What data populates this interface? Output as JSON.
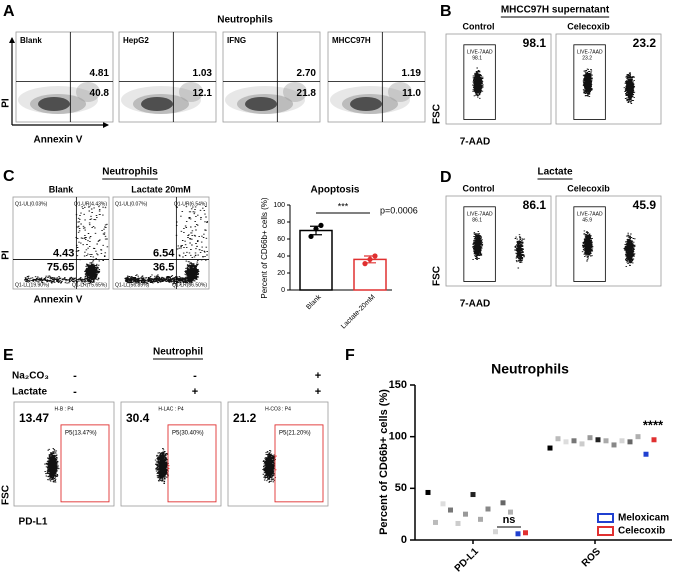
{
  "panel_a": {
    "letter": "A",
    "title": "Neutrophils",
    "y_axis": "PI",
    "x_axis": "Annexin V",
    "plots": [
      {
        "name": "Blank",
        "upper_right": "4.81",
        "lower_right": "40.8"
      },
      {
        "name": "HepG2",
        "upper_right": "1.03",
        "lower_right": "12.1"
      },
      {
        "name": "IFNG",
        "upper_right": "2.70",
        "lower_right": "21.8"
      },
      {
        "name": "MHCC97H",
        "upper_right": "1.19",
        "lower_right": "11.0"
      }
    ]
  },
  "panel_b": {
    "letter": "B",
    "title": "MHCC97H supernatant",
    "y_axis": "FSC",
    "x_axis": "7-AAD",
    "plots": [
      {
        "name": "Control",
        "value": "98.1",
        "gate": "LIVE-7AAD",
        "gate_value": "98.1"
      },
      {
        "name": "Celecoxib",
        "value": "23.2",
        "gate": "LIVE-7AAD",
        "gate_value": "23.2"
      }
    ]
  },
  "panel_c": {
    "letter": "C",
    "title": "Neutrophils",
    "y_axis": "PI",
    "x_axis": "Annexin V",
    "plots": [
      {
        "name": "Blank",
        "upper_right": "4.43",
        "lower_right": "75.65",
        "quadrants": [
          "Q1-UL(0.03%)",
          "Q1-UR(4.43%)",
          "Q1-LL(19.90%)",
          "Q1-LR(75.65%)"
        ]
      },
      {
        "name": "Lactate 20mM",
        "upper_right": "6.54",
        "lower_right": "36.5",
        "quadrants": [
          "Q1-UL(0.07%)",
          "Q1-UR(6.54%)",
          "Q1-LL(56.89%)",
          "Q1-LR(36.50%)"
        ]
      }
    ]
  },
  "panel_d": {
    "letter": "D",
    "title": "Lactate",
    "y_axis": "FSC",
    "x_axis": "7-AAD",
    "plots": [
      {
        "name": "Control",
        "value": "86.1",
        "gate": "LIVE-7AAD",
        "gate_value": "86.1"
      },
      {
        "name": "Celecoxib",
        "value": "45.9",
        "gate": "LIVE-7AAD",
        "gate_value": "45.9"
      }
    ]
  },
  "panel_e": {
    "letter": "E",
    "title": "Neutrophil",
    "y_axis": "FSC",
    "x_axis": "PD-L1",
    "rows": [
      {
        "label": "Na₂CO₃",
        "signs": [
          "-",
          "-",
          "+"
        ]
      },
      {
        "label": "Lactate",
        "signs": [
          "-",
          "+",
          "+"
        ]
      }
    ],
    "plots": [
      {
        "header": "H-B : P4",
        "value": "13.47",
        "gate": "P5(13.47%)"
      },
      {
        "header": "H-LAC : P4",
        "value": "30.4",
        "gate": "P5(30.40%)"
      },
      {
        "header": "H-CO3 : P4",
        "value": "21.2",
        "gate": "P5(21.20%)"
      }
    ]
  },
  "panel_f": {
    "letter": "F"
  },
  "chart_data": [
    {
      "type": "bar",
      "title": "Apoptosis",
      "y_label": "Percent of CD66b+ cells (%)",
      "categories": [
        "Blank",
        "Lactate-20mM"
      ],
      "values": [
        70,
        36
      ],
      "errors": [
        5,
        4
      ],
      "points": [
        [
          63,
          72,
          76
        ],
        [
          31,
          36,
          40
        ]
      ],
      "colors": [
        "#000000",
        "#e03030"
      ],
      "ylim": [
        0,
        100
      ],
      "yticks": [
        0,
        20,
        40,
        60,
        80,
        100
      ],
      "annotations": {
        "significance": "***",
        "p_value": "p=0.0006"
      }
    },
    {
      "type": "scatter",
      "title": "Neutrophils",
      "y_label": "Percent of CD66b+ cells (%)",
      "categories": [
        "PD-L1",
        "ROS"
      ],
      "ylim": [
        0,
        150
      ],
      "yticks": [
        0,
        50,
        100,
        150
      ],
      "legend": "lower right",
      "annotations": {
        "pd_l1": "ns",
        "ros": "****"
      },
      "series": [
        {
          "color": "#000000",
          "values": [
            46,
            89
          ]
        },
        {
          "color": "#bbbbbb",
          "values": [
            17,
            98
          ]
        },
        {
          "color": "#dddddd",
          "values": [
            35,
            95
          ]
        },
        {
          "color": "#777777",
          "values": [
            29,
            96
          ]
        },
        {
          "color": "#cccccc",
          "values": [
            16,
            93
          ]
        },
        {
          "color": "#999999",
          "values": [
            25,
            99
          ]
        },
        {
          "color": "#222222",
          "values": [
            44,
            97
          ]
        },
        {
          "color": "#aaaaaa",
          "values": [
            20,
            96
          ]
        },
        {
          "color": "#888888",
          "values": [
            30,
            92
          ]
        },
        {
          "color": "#d5d5d5",
          "values": [
            8,
            96
          ]
        },
        {
          "color": "#666666",
          "values": [
            36,
            95
          ]
        },
        {
          "color": "#b0b0b0",
          "values": [
            27,
            100
          ]
        },
        {
          "name": "Meloxicam",
          "color": "#2040d0",
          "values": [
            6,
            83
          ]
        },
        {
          "name": "Celecoxib",
          "color": "#e03030",
          "values": [
            7,
            97
          ]
        }
      ]
    }
  ]
}
